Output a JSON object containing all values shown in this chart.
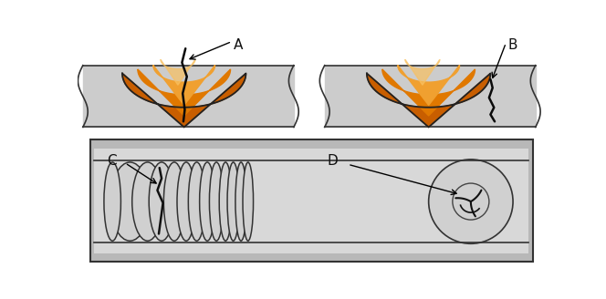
{
  "bg_color": "#ffffff",
  "plate_color": "#cccccc",
  "plate_edge_color": "#333333",
  "weld_orange_dark": "#c85e00",
  "weld_orange_mid": "#e07800",
  "weld_orange_light": "#f0a030",
  "weld_orange_highlight": "#f8c060",
  "crack_color": "#111111",
  "label_color": "#111111",
  "label_fontsize": 11,
  "label_A": "A",
  "label_B": "B",
  "label_C": "C",
  "label_D": "D",
  "box_bg": "#d8d8d8",
  "box_inner": "#dcdcdc",
  "ellipse_fill": "#d0d0d0",
  "ellipse_edge": "#333333"
}
